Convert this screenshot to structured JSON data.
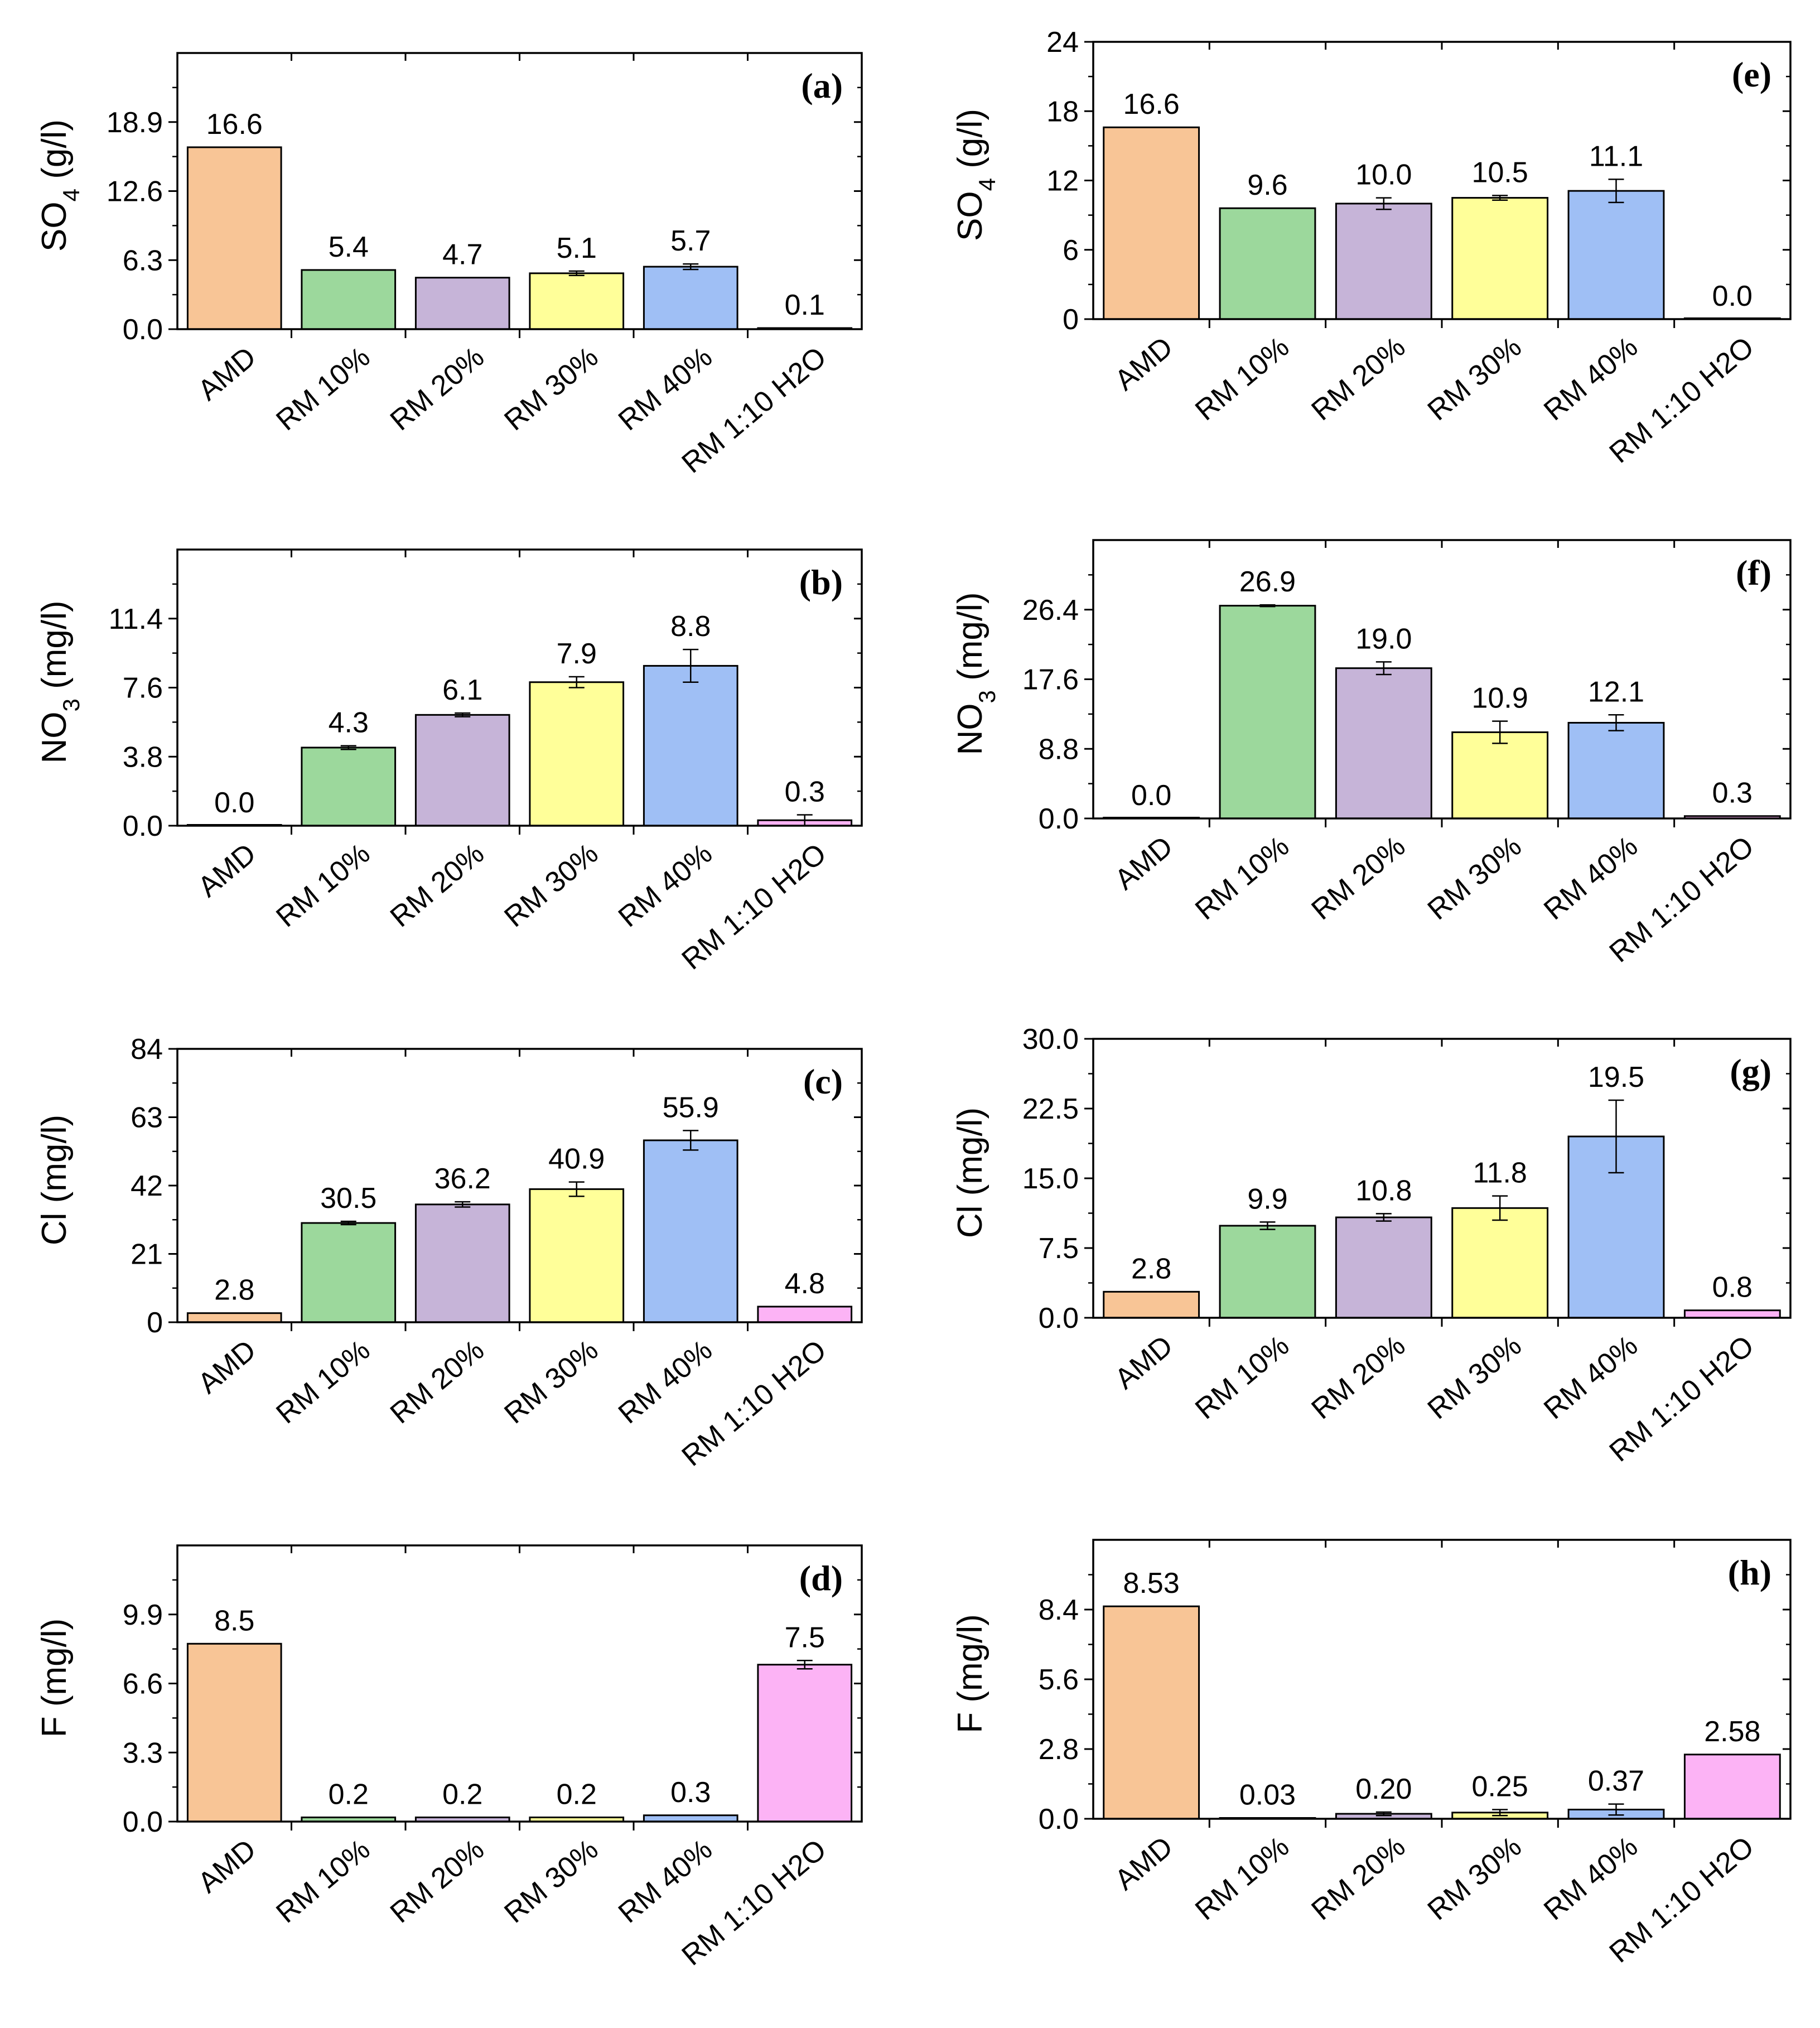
{
  "chart_data": [
    {
      "type": "bar",
      "panel_label": "(a)",
      "ylabel_main": "SO",
      "ylabel_sub": "4",
      "ylabel_rest": " (g/l)",
      "categories": [
        "AMD",
        "RM 10%",
        "RM 20%",
        "RM 30%",
        "RM 40%",
        "RM 1:10 H2O"
      ],
      "values": [
        16.6,
        5.4,
        4.7,
        5.1,
        5.7,
        0.1
      ],
      "errors": [
        0,
        0,
        0,
        0.2,
        0.25,
        0
      ],
      "data_labels": [
        "16.6",
        "5.4",
        "4.7",
        "5.1",
        "5.7",
        "0.1"
      ],
      "ylim": [
        0,
        25.2
      ],
      "yticks": [
        0,
        6.3,
        12.6,
        18.9
      ],
      "ytick_labels": [
        "0.0",
        "6.3",
        "12.6",
        "18.9"
      ]
    },
    {
      "type": "bar",
      "panel_label": "(b)",
      "ylabel_main": "NO",
      "ylabel_sub": "3",
      "ylabel_rest": " (mg/l)",
      "categories": [
        "AMD",
        "RM 10%",
        "RM 20%",
        "RM 30%",
        "RM 40%",
        "RM 1:10 H2O"
      ],
      "values": [
        0.0,
        4.3,
        6.1,
        7.9,
        8.8,
        0.3
      ],
      "errors": [
        0,
        0.1,
        0.1,
        0.3,
        0.9,
        0.3
      ],
      "data_labels": [
        "0.0",
        "4.3",
        "6.1",
        "7.9",
        "8.8",
        "0.3"
      ],
      "ylim": [
        0,
        15.2
      ],
      "yticks": [
        0,
        3.8,
        7.6,
        11.4
      ],
      "ytick_labels": [
        "0.0",
        "3.8",
        "7.6",
        "11.4"
      ]
    },
    {
      "type": "bar",
      "panel_label": "(c)",
      "ylabel_main": "Cl",
      "ylabel_sub": "",
      "ylabel_rest": " (mg/l)",
      "categories": [
        "AMD",
        "RM 10%",
        "RM 20%",
        "RM 30%",
        "RM 40%",
        "RM 1:10 H2O"
      ],
      "values": [
        2.8,
        30.5,
        36.2,
        40.9,
        55.9,
        4.8
      ],
      "errors": [
        0,
        0.5,
        0.8,
        2.2,
        3.0,
        0
      ],
      "data_labels": [
        "2.8",
        "30.5",
        "36.2",
        "40.9",
        "55.9",
        "4.8"
      ],
      "ylim": [
        0,
        84
      ],
      "yticks": [
        0,
        21,
        42,
        63,
        84
      ],
      "ytick_labels": [
        "0",
        "21",
        "42",
        "63",
        "84"
      ]
    },
    {
      "type": "bar",
      "panel_label": "(d)",
      "ylabel_main": "F",
      "ylabel_sub": "",
      "ylabel_rest": " (mg/l)",
      "categories": [
        "AMD",
        "RM 10%",
        "RM 20%",
        "RM 30%",
        "RM 40%",
        "RM 1:10 H2O"
      ],
      "values": [
        8.5,
        0.2,
        0.2,
        0.2,
        0.3,
        7.5
      ],
      "errors": [
        0,
        0,
        0,
        0,
        0,
        0.2
      ],
      "data_labels": [
        "8.5",
        "0.2",
        "0.2",
        "0.2",
        "0.3",
        "7.5"
      ],
      "ylim": [
        0,
        13.2
      ],
      "yticks": [
        0,
        3.3,
        6.6,
        9.9
      ],
      "ytick_labels": [
        "0.0",
        "3.3",
        "6.6",
        "9.9"
      ]
    },
    {
      "type": "bar",
      "panel_label": "(e)",
      "ylabel_main": "SO",
      "ylabel_sub": "4",
      "ylabel_rest": " (g/l)",
      "categories": [
        "AMD",
        "RM 10%",
        "RM 20%",
        "RM 30%",
        "RM 40%",
        "RM 1:10 H2O"
      ],
      "values": [
        16.6,
        9.6,
        10.0,
        10.5,
        11.1,
        0.0
      ],
      "errors": [
        0,
        0,
        0.5,
        0.2,
        1.0,
        0
      ],
      "data_labels": [
        "16.6",
        "9.6",
        "10.0",
        "10.5",
        "11.1",
        "0.0"
      ],
      "ylim": [
        0,
        24
      ],
      "yticks": [
        0,
        6,
        12,
        18,
        24
      ],
      "ytick_labels": [
        "0",
        "6",
        "12",
        "18",
        "24"
      ]
    },
    {
      "type": "bar",
      "panel_label": "(f)",
      "ylabel_main": "NO",
      "ylabel_sub": "3",
      "ylabel_rest": " (mg/l)",
      "categories": [
        "AMD",
        "RM 10%",
        "RM 20%",
        "RM 30%",
        "RM 40%",
        "RM 1:10 H2O"
      ],
      "values": [
        0.0,
        26.9,
        19.0,
        10.9,
        12.1,
        0.3
      ],
      "errors": [
        0,
        0.1,
        0.8,
        1.4,
        1.0,
        0
      ],
      "data_labels": [
        "0.0",
        "26.9",
        "19.0",
        "10.9",
        "12.1",
        "0.3"
      ],
      "ylim": [
        0,
        35.2
      ],
      "yticks": [
        0,
        8.8,
        17.6,
        26.4
      ],
      "ytick_labels": [
        "0.0",
        "8.8",
        "17.6",
        "26.4"
      ]
    },
    {
      "type": "bar",
      "panel_label": "(g)",
      "ylabel_main": "Cl",
      "ylabel_sub": "",
      "ylabel_rest": " (mg/l)",
      "categories": [
        "AMD",
        "RM 10%",
        "RM 20%",
        "RM 30%",
        "RM 40%",
        "RM 1:10 H2O"
      ],
      "values": [
        2.8,
        9.9,
        10.8,
        11.8,
        19.5,
        0.8
      ],
      "errors": [
        0,
        0.4,
        0.4,
        1.3,
        3.9,
        0
      ],
      "data_labels": [
        "2.8",
        "9.9",
        "10.8",
        "11.8",
        "19.5",
        "0.8"
      ],
      "ylim": [
        0,
        30
      ],
      "yticks": [
        0,
        7.5,
        15,
        22.5,
        30
      ],
      "ytick_labels": [
        "0.0",
        "7.5",
        "15.0",
        "22.5",
        "30.0"
      ]
    },
    {
      "type": "bar",
      "panel_label": "(h)",
      "ylabel_main": "F",
      "ylabel_sub": "",
      "ylabel_rest": " (mg/l)",
      "categories": [
        "AMD",
        "RM 10%",
        "RM 20%",
        "RM 30%",
        "RM 40%",
        "RM 1:10 H2O"
      ],
      "values": [
        8.53,
        0.03,
        0.2,
        0.25,
        0.37,
        2.58
      ],
      "errors": [
        0,
        0,
        0.07,
        0.12,
        0.22,
        0
      ],
      "data_labels": [
        "8.53",
        "0.03",
        "0.20",
        "0.25",
        "0.37",
        "2.58"
      ],
      "ylim": [
        0,
        11.2
      ],
      "yticks": [
        0,
        2.8,
        5.6,
        8.4
      ],
      "ytick_labels": [
        "0.0",
        "2.8",
        "5.6",
        "8.4"
      ]
    }
  ],
  "colors": {
    "bars": [
      "#f8c596",
      "#9cd89c",
      "#c6b4d8",
      "#ffff99",
      "#9fbff5",
      "#fcb3f5"
    ],
    "outline": "#000000"
  }
}
